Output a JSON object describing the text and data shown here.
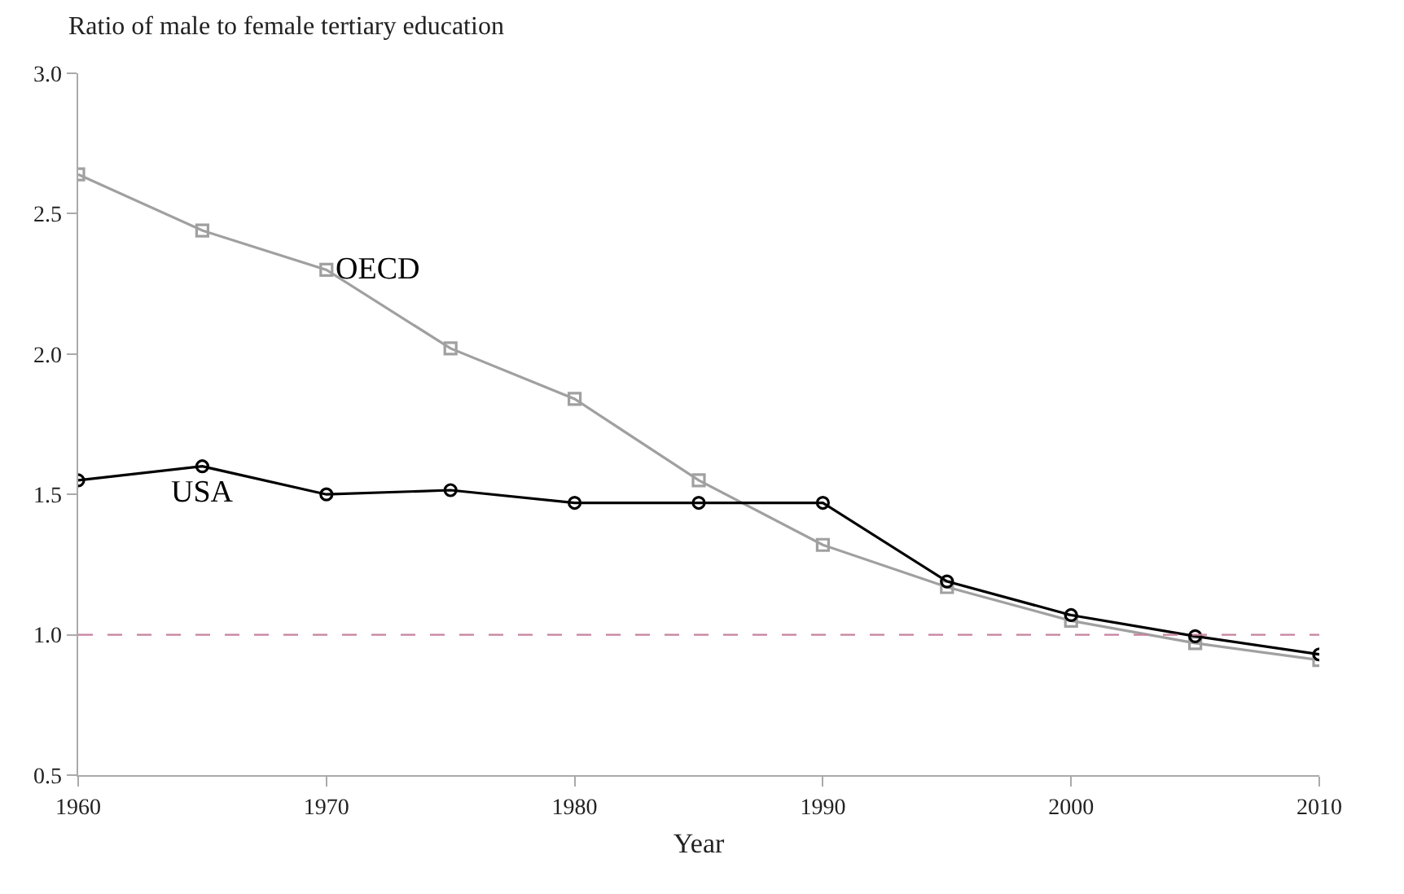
{
  "chart_data": {
    "type": "line",
    "ylabel": "Ratio of male to female tertiary education",
    "xlabel": "Year",
    "x": [
      1960,
      1965,
      1970,
      1975,
      1980,
      1985,
      1990,
      1995,
      2000,
      2005,
      2010
    ],
    "series": [
      {
        "name": "OECD",
        "color": "#a0a0a0",
        "marker": "square",
        "values": [
          2.64,
          2.44,
          2.3,
          2.02,
          1.84,
          1.55,
          1.32,
          1.17,
          1.05,
          0.97,
          0.91
        ]
      },
      {
        "name": "USA",
        "color": "#000000",
        "marker": "circle",
        "values": [
          1.55,
          1.6,
          1.5,
          1.515,
          1.47,
          1.47,
          1.47,
          1.19,
          1.07,
          0.995,
          0.93
        ]
      }
    ],
    "xlim": [
      1960,
      2010
    ],
    "xticks": [
      1960,
      1970,
      1980,
      1990,
      2000,
      2010
    ],
    "ylim": [
      0.5,
      3.0
    ],
    "yticks": [
      0.5,
      {
        "value": 1,
        "label": "1.0"
      },
      1.5,
      {
        "value": 2,
        "label": "2.0"
      },
      2.5,
      {
        "value": 3,
        "label": "3.0"
      }
    ],
    "ref_lines": [
      {
        "axis": "y",
        "value": 1.0,
        "color": "#c8809e",
        "line_style": "dashed"
      }
    ],
    "legend": false,
    "line_style": "solid"
  }
}
